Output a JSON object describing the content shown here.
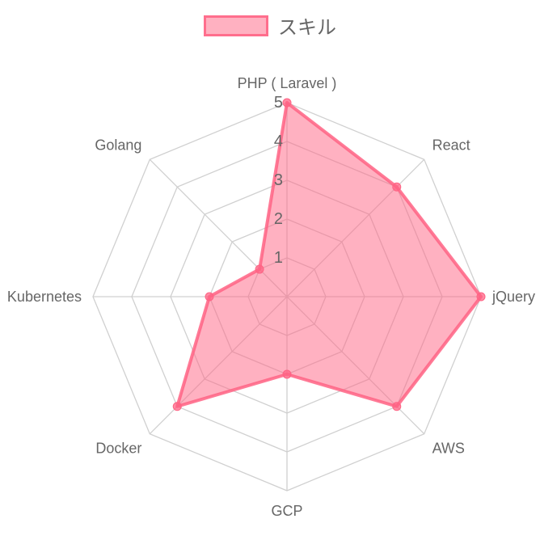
{
  "chart_data": {
    "type": "radar",
    "categories": [
      "PHP ( Laravel )",
      "React",
      "jQuery",
      "AWS",
      "GCP",
      "Docker",
      "Kubernetes",
      "Golang"
    ],
    "series": [
      {
        "name": "スキル",
        "values": [
          5,
          4,
          5,
          4,
          2,
          4,
          2,
          1
        ]
      }
    ],
    "rlim": [
      0,
      5
    ],
    "ticks": [
      "1",
      "2",
      "3",
      "4",
      "5"
    ],
    "grid": true,
    "legend_position": "top",
    "colors": {
      "fill": "rgba(255,99,132,0.5)",
      "stroke": "rgba(255,99,132,0.85)",
      "point": "#ff6384",
      "grid": "#d0d0d0",
      "label": "#666666"
    }
  }
}
